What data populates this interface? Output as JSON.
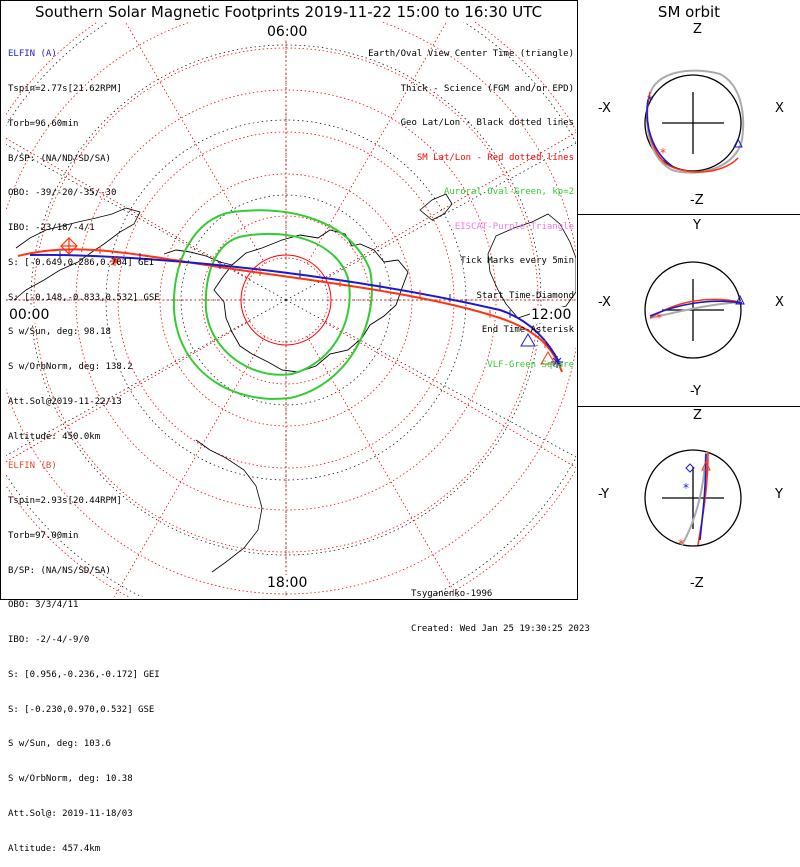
{
  "title": "Southern Solar Magnetic Footprints 2019-11-22 15:00 to 16:30 UTC",
  "sm_title": "SM orbit",
  "clock_labels": {
    "top": "06:00",
    "bottom": "18:00",
    "left": "00:00",
    "right": "12:00"
  },
  "elfin_a": {
    "name": "ELFIN (A)",
    "lines": [
      "Tspin=2.77s[21.62RPM]",
      "Torb=96.60min",
      "B/SP: (NA/ND/SD/SA)",
      "OBO: -39/-20/-35/-30",
      "IBO: -23/18/-4/1",
      "S: [-0.649,0.286,0.704] GEI",
      "S: [-0.148,-0.833,0.532] GSE",
      "S w/Sun, deg: 98.18",
      "S w/OrbNorm, deg: 138.2",
      "Att.Sol@2019-11-22/13",
      "Altitude: 450.0km"
    ]
  },
  "elfin_b": {
    "name": "ELFIN (B)",
    "lines": [
      "Tspin=2.93s[20.44RPM]",
      "Torb=97.00min",
      "B/SP: (NA/NS/SD/SA)",
      "OBO: 3/3/4/11",
      "IBO: -2/-4/-9/0",
      "S: [0.956,-0.236,-0.172] GEI",
      "S: [-0.230,0.970,0.532] GSE",
      "S w/Sun, deg: 103.6",
      "S w/OrbNorm, deg: 10.38",
      "Att.Sol@: 2019-11-18/03",
      "Altitude: 457.4km"
    ]
  },
  "legend": [
    {
      "text": "Earth/Oval View Center Time (triangle)",
      "color": "#000000"
    },
    {
      "text": "Thick - Science (FGM and/or EPD)",
      "color": "#000000"
    },
    {
      "text": "Geo Lat/Lon - Black dotted lines",
      "color": "#000000"
    },
    {
      "text": "SM Lat/Lon - Red dotted lines",
      "color": "#ff0000"
    },
    {
      "text": "Auroral Oval-Green, kp=2",
      "color": "#33cc33"
    },
    {
      "text": "EISCAT-Purple Triangle",
      "color": "#ee77ee"
    },
    {
      "text": "Tick Marks every 5min",
      "color": "#000000"
    },
    {
      "text": "Start Time-Diamond",
      "color": "#000000"
    },
    {
      "text": "End Time-Asterisk",
      "color": "#000000"
    },
    {
      "text": "VLF-Green Square",
      "color": "#33cc33"
    }
  ],
  "credits": [
    "Tsyganenko-1996",
    "Created: Wed Jan 25 19:30:25 2023"
  ],
  "sm_panels": [
    {
      "top": "Z",
      "bottom": "-Z",
      "left": "-X",
      "right": "X"
    },
    {
      "top": "Y",
      "bottom": "-Y",
      "left": "-X",
      "right": "X"
    },
    {
      "top": "Z",
      "bottom": "-Z",
      "left": "-Y",
      "right": "Y"
    }
  ],
  "colors": {
    "elfin_a": "#1a1acc",
    "elfin_b": "#ff3311",
    "oval": "#33cc33",
    "sm_grid": "#ff0000",
    "geo_grid": "#000000"
  }
}
